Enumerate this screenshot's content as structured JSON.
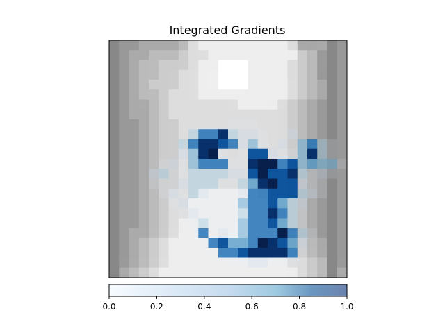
{
  "chart_data": {
    "type": "heatmap",
    "title": "Integrated Gradients",
    "colorbar": {
      "ticks": [
        0.0,
        0.2,
        0.4,
        0.6,
        0.8,
        1.0
      ],
      "tick_labels": [
        "0.0",
        "0.2",
        "0.4",
        "0.6",
        "0.8",
        "1.0"
      ],
      "range": [
        0.0,
        1.0
      ],
      "colormap": "Blues"
    },
    "image": {
      "rows": 24,
      "cols": 24,
      "grayscale_background": [
        "889898aaaaaaaabbddeeeeeeeeeeeeeeeeeedda9a8aa",
        "8899aaaabbbbbbccdddeeeeeeeeeeeeeeeeeedcbba9a",
        "8899aabbbccccccdddeeeeffffffeeeeeeeedccbba9a",
        "8899aabbbccccddddeeeefffffffeeeeeeeedccbba99",
        "8899aabbcccccddddeeeefffffffeeeeeeeeddcbbaa9",
        "8899aabbbcccdddddeeeeeeeeeeeeeeeeeeeddcbbaa9",
        "8899aaabbbccdddddddddddddeeeeeeeedddccbbaa99",
        "8899aaaabbccdddddddddddddddddddddddcccbbaa99",
        "889999aabbcccddddddddddddddddddddddcccbbaa99",
        "889999aabbcccddddddddddddddddddddddcccbbaa99",
        "889999aabbcccddddddddddddddddddddddcccbbaa99",
        "889999aabbcccddddddddddddddddddddddcccbbaa99",
        "889999aabbcccddddddddddddddddddddddcccbbaa99",
        "889999aabbcccddddddddddddddddddddddcccbbaa99",
        "889999aabbcccddddddddddddddddddddddcccbbaa99",
        "889999aabbccddddddeeeeeeeeeeeeddddddccbbaa99",
        "889999aabbccdddeeeeeeeeeeeeeeeeeddddccbbaa99",
        "889999aabbccdddeeeeeeeeeeeeeeeeeddddccbbaa99",
        "889999aabbccddeeeeeeeeeeeeeeeeeeeeddccbbaa99",
        "8899aaabbccddeeeeeeeeeeeeeeeeeeeeeddccbbaa99",
        "8899aabbccddeeeeeeeeeeeeeeeeeeeeeeddcccbbaa9",
        "8899aabbccddeeeeeeeeeeeeeeeeeeeeeeedddccbbaa",
        "889aabbccddeeeeeeeeeeeeeeeeeeeeeeeeedddccbba",
        "88aabbccddeeeeeeeeeeeeeeeeeeeeeeeeeeeddccbba"
      ],
      "attributions": [
        "000000000000000000000000",
        "000000000000000000000000",
        "000000000000000000000000",
        "000000000000000000000000",
        "000000000000000000000000",
        "000000000000000000000000",
        "000000000000000000000000",
        "000000000000000000000000",
        "000000000000111000000000",
        "000000003668322100200000",
        "000000036887624102046310",
        "000000024891017721148310",
        "000001214666118996745441",
        "000023113333227977831210",
        "000011123331135897721100",
        "000001213211126677732100",
        "000000121111146675320000",
        "000000012111136686310000",
        "000000001311146675310000",
        "000000000612146669631000",
        "000000000167556987520000",
        "000000000016678888610000",
        "000000000000112211100000",
        "000000000000000000000000"
      ]
    }
  }
}
